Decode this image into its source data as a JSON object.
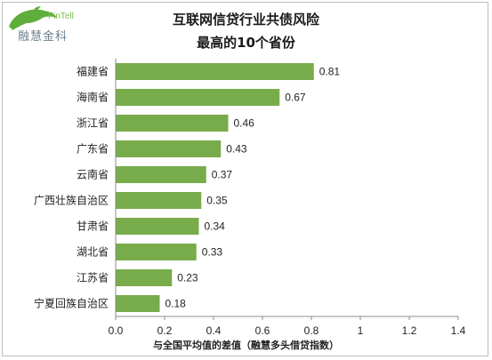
{
  "brand": {
    "name_en": "FinTell",
    "name_cn": "融慧金科",
    "colors": {
      "dolphin": "#5fae3c",
      "text": "#6a7f8c"
    }
  },
  "chart_data": {
    "type": "bar",
    "orientation": "horizontal",
    "title": [
      "互联网信贷行业共债风险",
      "最高的10个省份"
    ],
    "xlabel": "与全国平均值的差值（融慧多头借贷指数）",
    "ylabel": "",
    "categories": [
      "福建省",
      "海南省",
      "浙江省",
      "广东省",
      "云南省",
      "广西壮族自治区",
      "甘肃省",
      "湖北省",
      "江苏省",
      "宁夏回族自治区"
    ],
    "values": [
      0.81,
      0.67,
      0.46,
      0.43,
      0.37,
      0.35,
      0.34,
      0.33,
      0.23,
      0.18
    ],
    "value_labels": [
      "0.81",
      "0.67",
      "0.46",
      "0.43",
      "0.37",
      "0.35",
      "0.34",
      "0.33",
      "0.23",
      "0.18"
    ],
    "xlim": [
      0,
      1.4
    ],
    "xticks": [
      "0.0",
      "0.2",
      "0.4",
      "0.6",
      "0.8",
      "1",
      "1.2",
      "1.4"
    ],
    "grid": false,
    "legend": "none",
    "bar_color": "#78ac4a"
  }
}
